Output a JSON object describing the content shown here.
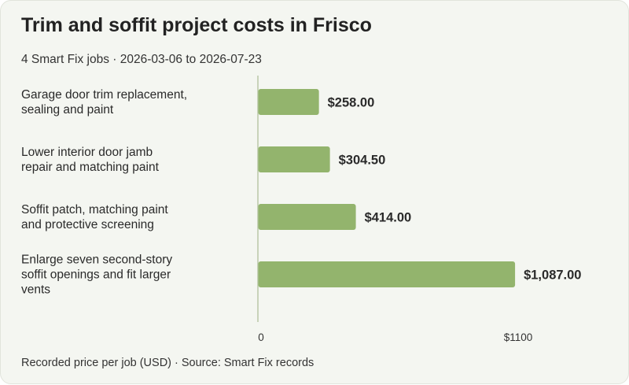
{
  "header": {
    "title": "Trim and soffit project costs in Frisco",
    "subtitle": "4 Smart Fix jobs · 2026-03-06 to 2026-07-23"
  },
  "footer": {
    "note": "Recorded price per job (USD) · Source: Smart Fix records"
  },
  "chart_data": {
    "type": "bar",
    "orientation": "horizontal",
    "title": "Trim and soffit project costs in Frisco",
    "categories": [
      "Garage door trim replacement, sealing and paint",
      "Lower interior door jamb repair and matching paint",
      "Soffit patch, matching paint and protective screening",
      "Enlarge seven second-story soffit openings and fit larger vents"
    ],
    "category_lines": [
      [
        "Garage door trim replacement,",
        "sealing and paint"
      ],
      [
        "Lower interior door jamb",
        "repair and matching paint"
      ],
      [
        "Soffit patch, matching paint",
        "and protective screening"
      ],
      [
        "Enlarge seven second-story",
        "soffit openings and fit larger",
        "vents"
      ]
    ],
    "values": [
      258.0,
      304.5,
      414.0,
      1087.0
    ],
    "value_labels": [
      "$258.00",
      "$304.50",
      "$414.00",
      "$1,087.00"
    ],
    "xlim": [
      0,
      1100
    ],
    "ticks": [
      0,
      1100
    ],
    "tick_labels": [
      "0",
      "$1100"
    ],
    "grid": false,
    "legend": "none",
    "colors": {
      "bar": "#93b46d",
      "axis": "#b9c7a8",
      "text": "#2a2a2a"
    }
  }
}
